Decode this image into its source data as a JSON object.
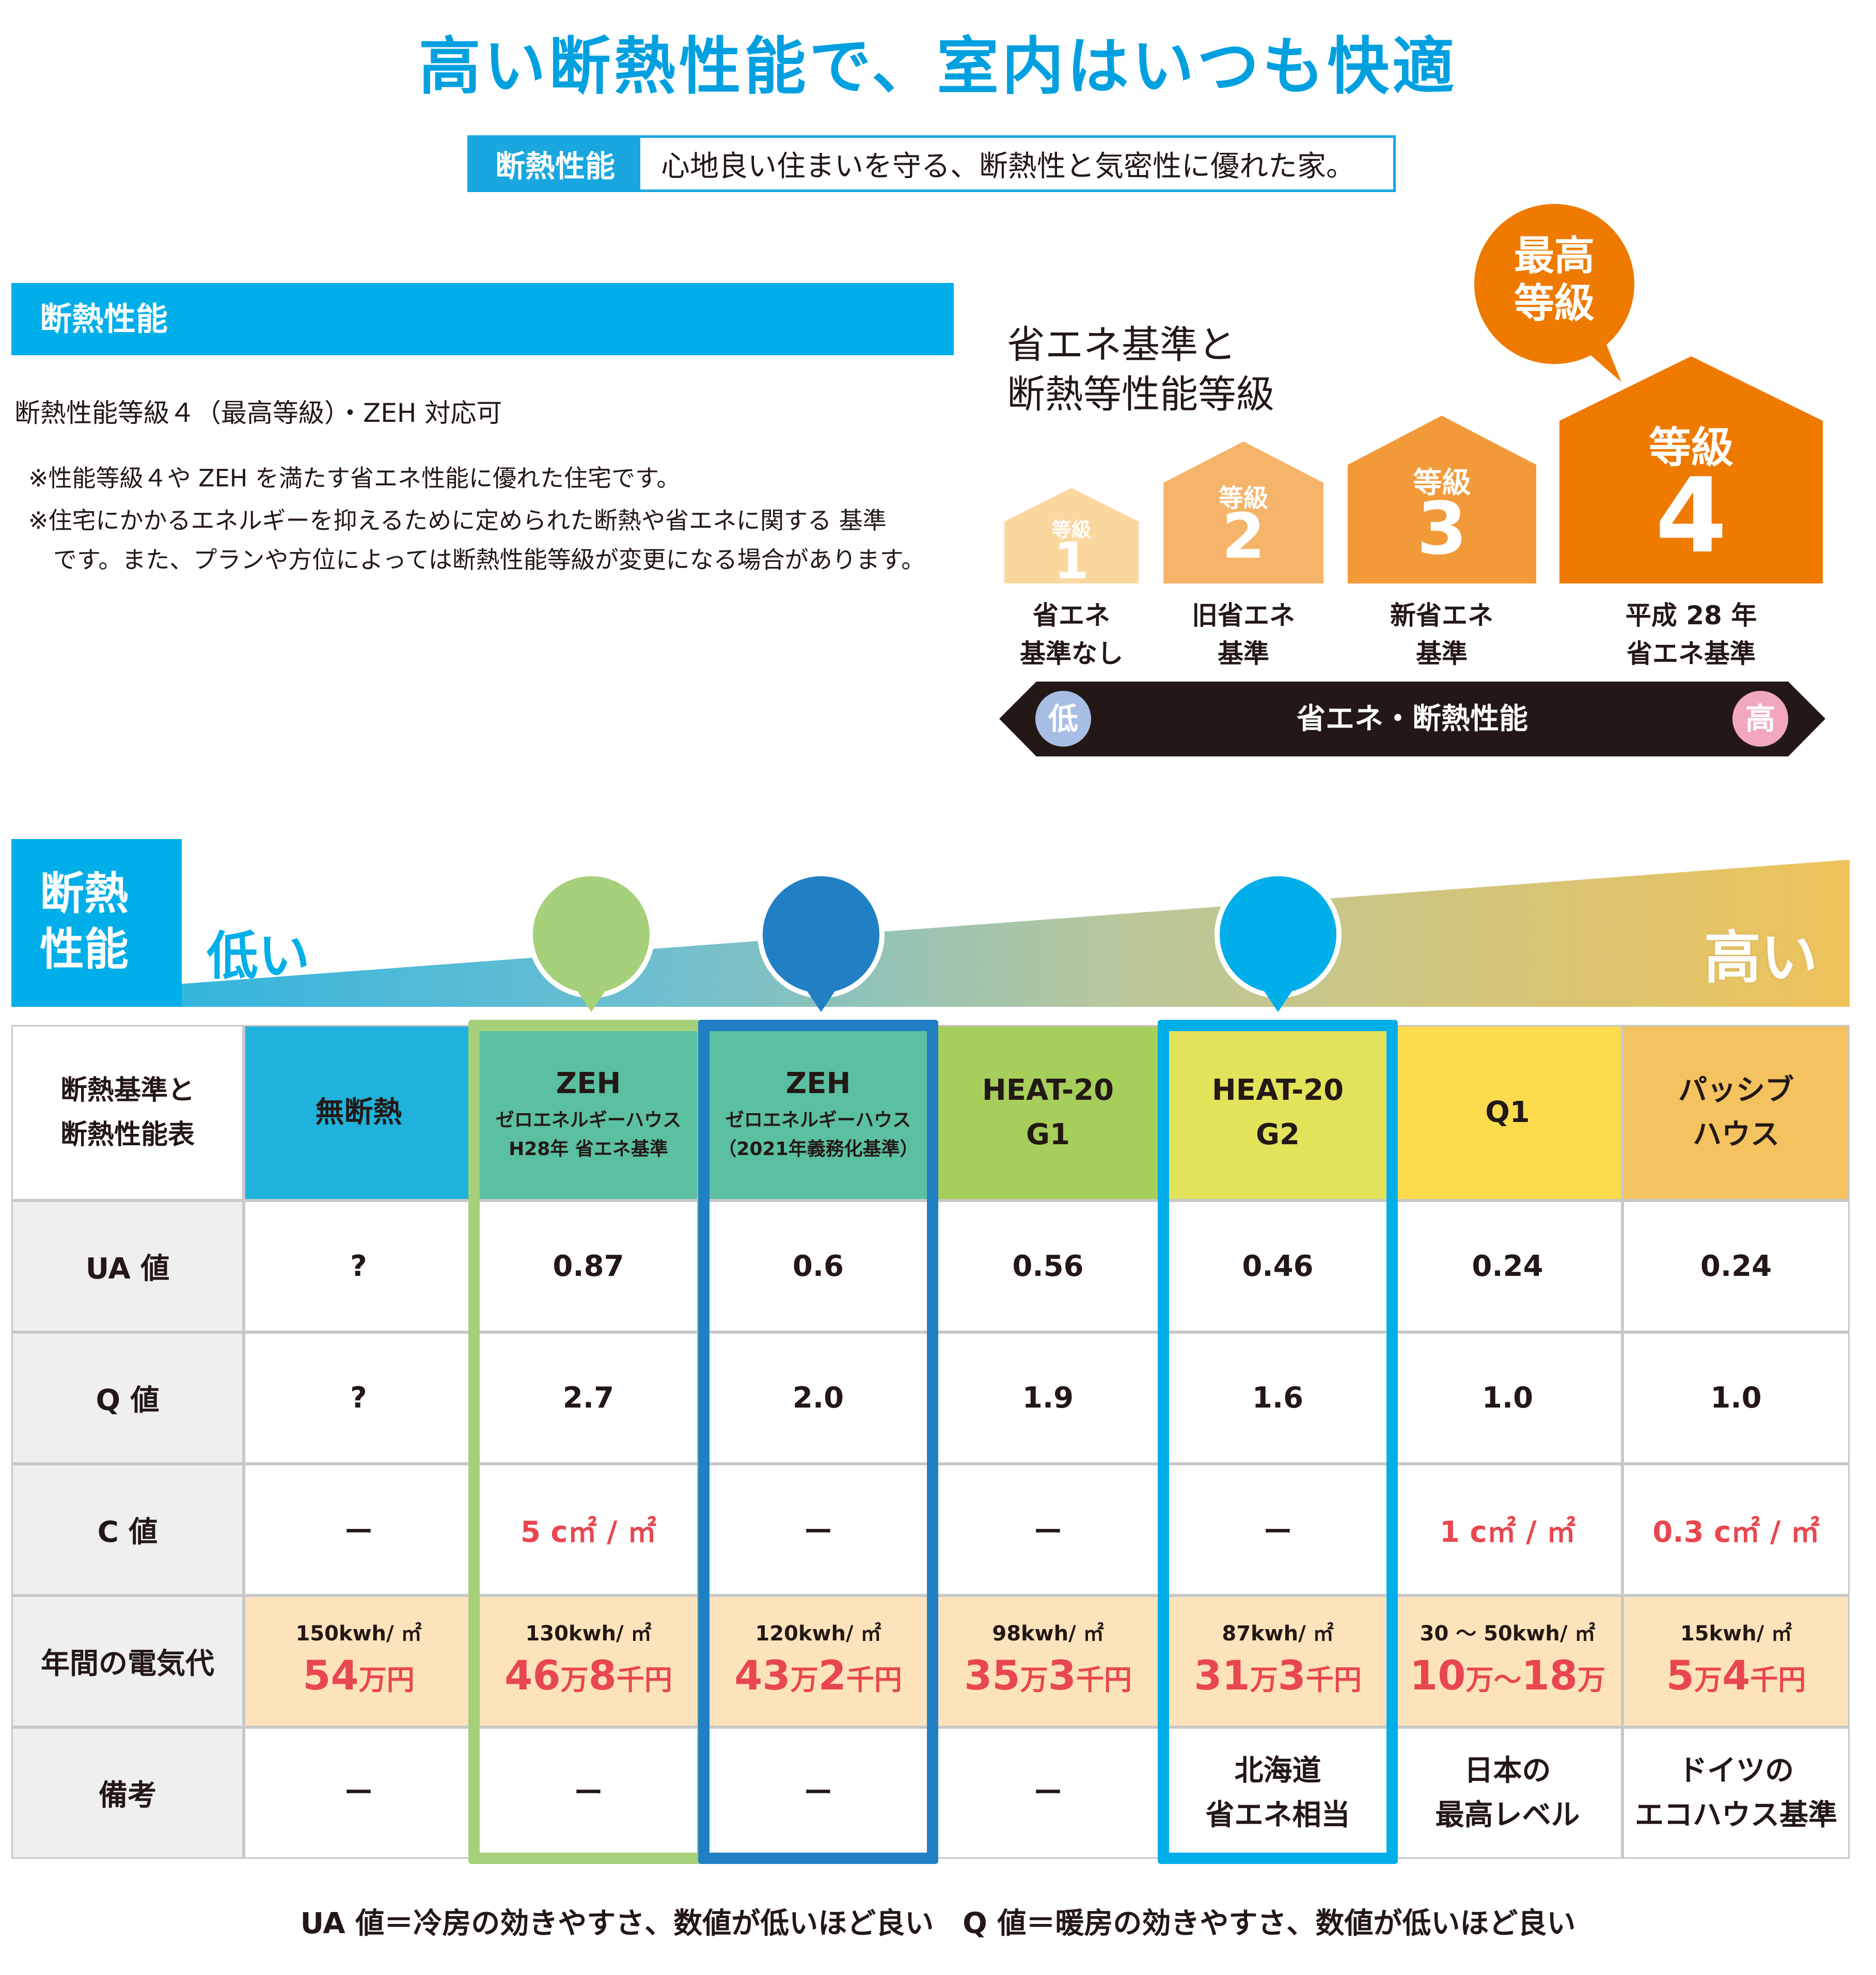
{
  "title": "高い断熱性能で、室内はいつも快適",
  "tagline": {
    "head": "断熱性能",
    "text": "心地良い住まいを守る、断熱性と気密性に優れた家。"
  },
  "perf_section": {
    "bar_label": "断熱性能",
    "line": "断熱性能等級４（最高等級）・ZEH 対応可",
    "note1": "※性能等級４や ZEH を満たす省エネ性能に優れた住宅です。",
    "note2a": "※住宅にかかるエネルギーを抑えるために定められた断熱や省エネに関する 基準",
    "note2b": "です。また、プランや方位によっては断熱性能等級が変更になる場合があります。"
  },
  "grade_graphic": {
    "heading_line1": "省エネ基準と",
    "heading_line2": "断熱等性能等級",
    "best_line1": "最高",
    "best_line2": "等級",
    "grades": [
      {
        "label": "等級",
        "num": "1",
        "caption1": "省エネ",
        "caption2": "基準なし",
        "color": "#fbd7a0"
      },
      {
        "label": "等級",
        "num": "2",
        "caption1": "旧省エネ",
        "caption2": "基準",
        "color": "#f6b46a"
      },
      {
        "label": "等級",
        "num": "3",
        "caption1": "新省エネ",
        "caption2": "基準",
        "color": "#f29a3a"
      },
      {
        "label": "等級",
        "num": "4",
        "caption1": "平成 28 年",
        "caption2": "省エネ基準",
        "color": "#ee7a00"
      }
    ],
    "arrow_label": "省エネ・断熱性能",
    "arrow_low": "低",
    "arrow_high": "高",
    "best_color": "#ee7a00"
  },
  "banner": {
    "label_line1": "断熱",
    "label_line2": "性能",
    "low": "低い",
    "high": "高い"
  },
  "table": {
    "corner_line1": "断熱基準と",
    "corner_line2": "断熱性能表",
    "row_headers": [
      "UA 値",
      "Q 値",
      "C 値",
      "年間の電気代",
      "備考"
    ],
    "columns": [
      {
        "h1": "無断熱",
        "h2": "",
        "h3": "",
        "color": "#1fb2dc",
        "ua": "?",
        "q": "?",
        "c": "ー",
        "elec_kwh": "150kwh/ ㎡",
        "cost_a": "54",
        "cost_b": "万円",
        "cost_c": "",
        "cost_d": "",
        "remark1": "ー",
        "remark2": ""
      },
      {
        "h1": "ZEH",
        "h2": "ゼロエネルギーハウス",
        "h3": "H28年 省エネ基準",
        "color": "#5bbfa2",
        "ua": "0.87",
        "q": "2.7",
        "c": "5 c㎡ / ㎡",
        "elec_kwh": "130kwh/ ㎡",
        "cost_a": "46",
        "cost_b": "万",
        "cost_c": "8",
        "cost_d": "千円",
        "remark1": "ー",
        "remark2": ""
      },
      {
        "h1": "ZEH",
        "h2": "ゼロエネルギーハウス",
        "h3": "（2021年義務化基準）",
        "color": "#5bbfa2",
        "ua": "0.6",
        "q": "2.0",
        "c": "ー",
        "elec_kwh": "120kwh/ ㎡",
        "cost_a": "43",
        "cost_b": "万",
        "cost_c": "2",
        "cost_d": "千円",
        "remark1": "ー",
        "remark2": ""
      },
      {
        "h1": "HEAT-20",
        "h2": "G1",
        "h3": "",
        "color": "#a6ce5a",
        "ua": "0.56",
        "q": "1.9",
        "c": "ー",
        "elec_kwh": "98kwh/ ㎡",
        "cost_a": "35",
        "cost_b": "万",
        "cost_c": "3",
        "cost_d": "千円",
        "remark1": "ー",
        "remark2": ""
      },
      {
        "h1": "HEAT-20",
        "h2": "G2",
        "h3": "",
        "color": "#e2e35a",
        "ua": "0.46",
        "q": "1.6",
        "c": "ー",
        "elec_kwh": "87kwh/ ㎡",
        "cost_a": "31",
        "cost_b": "万",
        "cost_c": "3",
        "cost_d": "千円",
        "remark1": "北海道",
        "remark2": "省エネ相当"
      },
      {
        "h1": "Q1",
        "h2": "",
        "h3": "",
        "color": "#fcdc4d",
        "ua": "0.24",
        "q": "1.0",
        "c": "1 c㎡ / ㎡",
        "elec_kwh": "30 〜 50kwh/ ㎡",
        "cost_a": "10",
        "cost_b": "万〜",
        "cost_c": "18",
        "cost_d": "万",
        "remark1": "日本の",
        "remark2": "最高レベル"
      },
      {
        "h1": "パッシブ",
        "h2": "ハウス",
        "h3": "",
        "color": "#f4c35f",
        "ua": "0.24",
        "q": "1.0",
        "c": "0.3 c㎡ / ㎡",
        "elec_kwh": "15kwh/ ㎡",
        "cost_a": "5",
        "cost_b": "万",
        "cost_c": "4",
        "cost_d": "千円",
        "remark1": "ドイツの",
        "remark2": "エコハウス基準"
      }
    ],
    "highlight_colors": [
      "#a6d07a",
      "#2180c4",
      "#00aee9"
    ]
  },
  "footer": "UA 値＝冷房の効きやすさ、数値が低いほど良い　Q 値＝暖房の効きやすさ、数値が低いほど良い"
}
